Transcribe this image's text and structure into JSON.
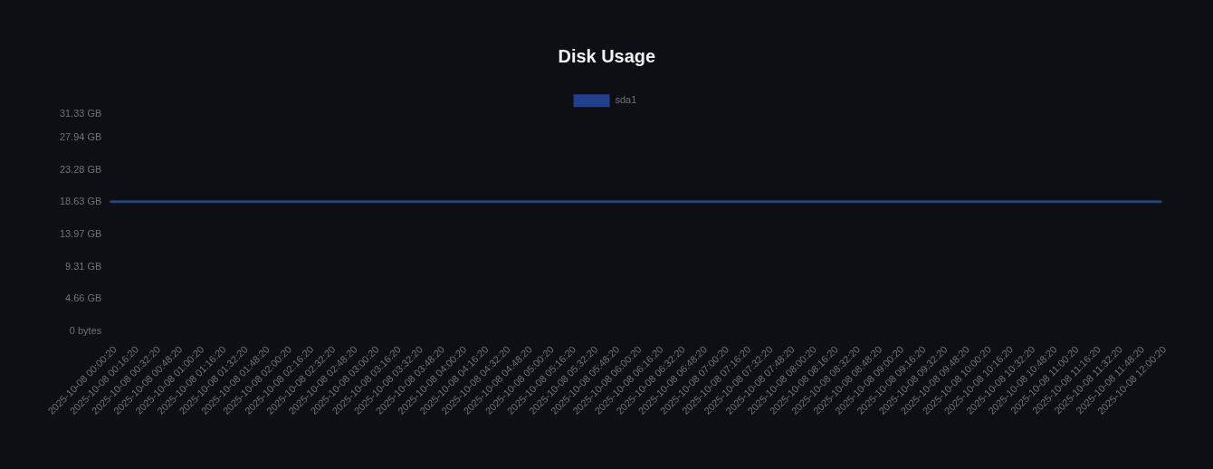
{
  "chart_data": {
    "type": "line",
    "title": "Disk Usage",
    "categories": [
      "2025-10-08 00:00:20",
      "2025-10-08 00:16:20",
      "2025-10-08 00:32:20",
      "2025-10-08 00:48:20",
      "2025-10-08 01:00:20",
      "2025-10-08 01:16:20",
      "2025-10-08 01:32:20",
      "2025-10-08 01:48:20",
      "2025-10-08 02:00:20",
      "2025-10-08 02:16:20",
      "2025-10-08 02:32:20",
      "2025-10-08 02:48:20",
      "2025-10-08 03:00:20",
      "2025-10-08 03:16:20",
      "2025-10-08 03:32:20",
      "2025-10-08 03:48:20",
      "2025-10-08 04:00:20",
      "2025-10-08 04:16:20",
      "2025-10-08 04:32:20",
      "2025-10-08 04:48:20",
      "2025-10-08 05:00:20",
      "2025-10-08 05:16:20",
      "2025-10-08 05:32:20",
      "2025-10-08 05:48:20",
      "2025-10-08 06:00:20",
      "2025-10-08 06:16:20",
      "2025-10-08 06:32:20",
      "2025-10-08 06:48:20",
      "2025-10-08 07:00:20",
      "2025-10-08 07:16:20",
      "2025-10-08 07:32:20",
      "2025-10-08 07:48:20",
      "2025-10-08 08:00:20",
      "2025-10-08 08:16:20",
      "2025-10-08 08:32:20",
      "2025-10-08 08:48:20",
      "2025-10-08 09:00:20",
      "2025-10-08 09:16:20",
      "2025-10-08 09:32:20",
      "2025-10-08 09:48:20",
      "2025-10-08 10:00:20",
      "2025-10-08 10:16:20",
      "2025-10-08 10:32:20",
      "2025-10-08 10:48:20",
      "2025-10-08 11:00:20",
      "2025-10-08 11:16:20",
      "2025-10-08 11:32:20",
      "2025-10-08 11:48:20",
      "2025-10-08 12:00:20"
    ],
    "series": [
      {
        "name": "sda1",
        "color": "#23408e",
        "values": [
          18.63,
          18.63,
          18.63,
          18.63,
          18.63,
          18.63,
          18.63,
          18.63,
          18.63,
          18.63,
          18.63,
          18.63,
          18.63,
          18.63,
          18.63,
          18.63,
          18.63,
          18.63,
          18.63,
          18.63,
          18.63,
          18.63,
          18.63,
          18.63,
          18.63,
          18.63,
          18.63,
          18.63,
          18.63,
          18.63,
          18.63,
          18.63,
          18.63,
          18.63,
          18.63,
          18.63,
          18.63,
          18.63,
          18.63,
          18.63,
          18.63,
          18.63,
          18.63,
          18.63,
          18.63,
          18.63,
          18.63,
          18.63,
          18.63
        ]
      }
    ],
    "ylim": [
      0,
      31.33
    ],
    "yticks": [
      {
        "value": 0,
        "label": "0 bytes"
      },
      {
        "value": 4.66,
        "label": "4.66 GB"
      },
      {
        "value": 9.31,
        "label": "9.31 GB"
      },
      {
        "value": 13.97,
        "label": "13.97 GB"
      },
      {
        "value": 18.63,
        "label": "18.63 GB"
      },
      {
        "value": 23.28,
        "label": "23.28 GB"
      },
      {
        "value": 27.94,
        "label": "27.94 GB"
      },
      {
        "value": 31.33,
        "label": "31.33 GB"
      }
    ],
    "legend": "top"
  }
}
